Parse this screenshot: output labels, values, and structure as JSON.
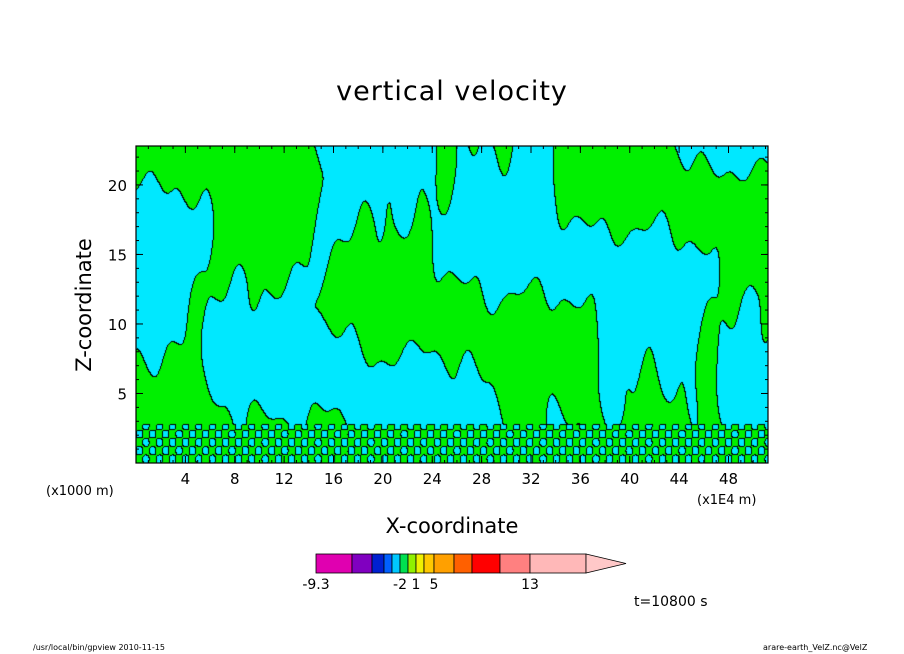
{
  "chart_data": {
    "type": "heatmap",
    "title": "vertical velocity",
    "xlabel": "X-coordinate",
    "ylabel": "Z-coordinate",
    "x_unit_label": "(x1000 m)",
    "x_scale_label": "(x1E4 m)",
    "x_ticks": [
      4,
      8,
      12,
      16,
      20,
      24,
      28,
      32,
      36,
      40,
      44,
      48
    ],
    "y_ticks": [
      5,
      10,
      15,
      20
    ],
    "xlim": [
      0,
      51.2
    ],
    "ylim": [
      0,
      22.8
    ],
    "time_label": "t=10800 s",
    "field_colors": {
      "negative": "#00e8ff",
      "positive": "#00f000",
      "contour": "#000000"
    },
    "colorbar": {
      "levels_shown": [
        "-9.3",
        "-2",
        "1",
        "5",
        "13"
      ],
      "colors": [
        "#e000b0",
        "#8000c0",
        "#0020d0",
        "#0060ff",
        "#00c8ff",
        "#00e050",
        "#90f000",
        "#f0f000",
        "#ffc800",
        "#ffa000",
        "#ff6000",
        "#ff0000",
        "#ff8080",
        "#ffb8b8",
        "#ffc8c8"
      ],
      "tick_positions": [
        0,
        5,
        7,
        9,
        13
      ]
    }
  },
  "footer": {
    "left": "/usr/local/bin/gpview  2010-11-15",
    "right": "arare-earth_VelZ.nc@VelZ"
  }
}
